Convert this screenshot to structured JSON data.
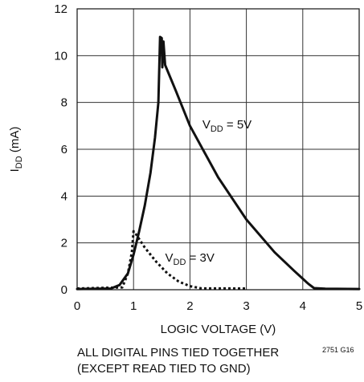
{
  "chart_data": {
    "type": "line",
    "xlabel": "LOGIC VOLTAGE (V)",
    "ylabel": {
      "main": "I",
      "sub": "DD",
      "unit": " (mA)"
    },
    "xlim": [
      0,
      5
    ],
    "ylim": [
      0,
      12
    ],
    "x_ticks": [
      0,
      1,
      2,
      3,
      4,
      5
    ],
    "y_ticks": [
      0,
      2,
      4,
      6,
      8,
      10,
      12
    ],
    "grid": true,
    "series": [
      {
        "name": "VDD = 5V",
        "label": {
          "main": "V",
          "sub": "DD",
          "rest": " = 5V"
        },
        "style": "solid",
        "color": "#111111",
        "points": [
          [
            0,
            0.03
          ],
          [
            0.6,
            0.05
          ],
          [
            0.75,
            0.2
          ],
          [
            0.9,
            0.7
          ],
          [
            1.0,
            1.5
          ],
          [
            1.1,
            2.5
          ],
          [
            1.2,
            3.6
          ],
          [
            1.3,
            5.0
          ],
          [
            1.38,
            6.5
          ],
          [
            1.44,
            8.0
          ],
          [
            1.47,
            10.8
          ],
          [
            1.5,
            10.75
          ],
          [
            1.51,
            9.5
          ],
          [
            1.53,
            10.6
          ],
          [
            1.56,
            9.6
          ],
          [
            1.75,
            8.5
          ],
          [
            2.0,
            7.0
          ],
          [
            2.5,
            4.8
          ],
          [
            3.0,
            3.0
          ],
          [
            3.5,
            1.6
          ],
          [
            3.85,
            0.8
          ],
          [
            4.1,
            0.25
          ],
          [
            4.2,
            0.07
          ],
          [
            4.4,
            0.04
          ],
          [
            5.0,
            0.03
          ]
        ]
      },
      {
        "name": "VDD = 3V",
        "label": {
          "main": "V",
          "sub": "DD",
          "rest": " = 3V"
        },
        "style": "dotted",
        "color": "#111111",
        "points": [
          [
            0,
            0.05
          ],
          [
            0.8,
            0.1
          ],
          [
            0.9,
            0.7
          ],
          [
            0.97,
            1.6
          ],
          [
            1.0,
            2.5
          ],
          [
            1.05,
            2.35
          ],
          [
            1.2,
            1.8
          ],
          [
            1.4,
            1.2
          ],
          [
            1.6,
            0.7
          ],
          [
            1.8,
            0.35
          ],
          [
            2.0,
            0.15
          ],
          [
            2.2,
            0.06
          ],
          [
            3.0,
            0.05
          ]
        ]
      }
    ]
  },
  "notes": {
    "line1": "ALL DIGITAL PINS TIED TOGETHER",
    "line2": "(EXCEPT READ TIED TO GND)",
    "figure_id": "2751 G16"
  }
}
